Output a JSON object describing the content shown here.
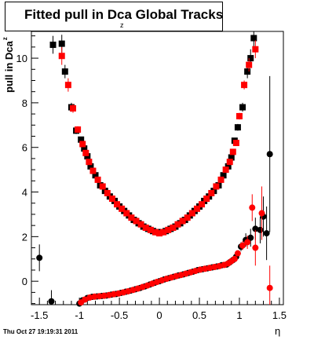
{
  "title": {
    "main": "Fitted pull in Dca Global Tracks",
    "sub": "z"
  },
  "timestamp": "Thu Oct 27 19:19:31 2011",
  "chart_data": {
    "type": "scatter",
    "xlabel": "η",
    "ylabel": "pull in Dca",
    "ylabel_sub": "z",
    "xlim": [
      -1.6,
      1.55
    ],
    "ylim": [
      -1.05,
      11.2
    ],
    "x_ticks": [
      -1.5,
      -1,
      -0.5,
      0,
      0.5,
      1,
      1.5
    ],
    "x_tick_labels": [
      "-1.5",
      "-1",
      "-0.5",
      "0",
      "0.5",
      "1",
      "1.5"
    ],
    "y_ticks": [
      0,
      2,
      4,
      6,
      8,
      10
    ],
    "y_tick_labels": [
      "0",
      "2",
      "4",
      "6",
      "8",
      "10"
    ],
    "grid": false,
    "series": [
      {
        "marker": "square",
        "color": "#000000",
        "points": [
          [
            -1.33,
            10.6
          ],
          [
            -1.22,
            10.65
          ],
          [
            -1.18,
            9.4
          ],
          [
            -1.1,
            7.8
          ],
          [
            -1.04,
            6.75
          ],
          [
            -0.98,
            6.35
          ],
          [
            -0.94,
            5.95
          ],
          [
            -0.9,
            5.6
          ],
          [
            -0.86,
            5.15
          ],
          [
            -0.8,
            4.75
          ],
          [
            -0.74,
            4.3
          ],
          [
            -0.68,
            4.05
          ],
          [
            -0.62,
            3.8
          ],
          [
            -0.56,
            3.6
          ],
          [
            -0.5,
            3.35
          ],
          [
            -0.44,
            3.15
          ],
          [
            -0.38,
            2.95
          ],
          [
            -0.32,
            2.75
          ],
          [
            -0.26,
            2.6
          ],
          [
            -0.2,
            2.45
          ],
          [
            -0.14,
            2.35
          ],
          [
            -0.08,
            2.25
          ],
          [
            -0.02,
            2.2
          ],
          [
            0.02,
            2.2
          ],
          [
            0.08,
            2.25
          ],
          [
            0.14,
            2.35
          ],
          [
            0.2,
            2.45
          ],
          [
            0.26,
            2.6
          ],
          [
            0.32,
            2.75
          ],
          [
            0.38,
            2.95
          ],
          [
            0.44,
            3.15
          ],
          [
            0.5,
            3.35
          ],
          [
            0.56,
            3.6
          ],
          [
            0.62,
            3.8
          ],
          [
            0.68,
            4.05
          ],
          [
            0.74,
            4.3
          ],
          [
            0.8,
            4.75
          ],
          [
            0.86,
            5.15
          ],
          [
            0.9,
            5.55
          ],
          [
            0.94,
            6.3
          ],
          [
            0.98,
            6.9
          ],
          [
            1.04,
            7.8
          ],
          [
            1.1,
            9.4
          ],
          [
            1.14,
            10
          ],
          [
            1.18,
            10.9
          ]
        ],
        "y_errors": [
          0.4,
          0.4,
          0.3,
          0.2,
          0.15,
          0.1,
          0.08,
          0.05,
          0.05,
          0.05,
          0.04,
          0.04,
          0.03,
          0.03,
          0.03,
          0.03,
          0.03,
          0.03,
          0.03,
          0.03,
          0.03,
          0.03,
          0.03,
          0.03,
          0.03,
          0.03,
          0.03,
          0.03,
          0.03,
          0.03,
          0.03,
          0.03,
          0.03,
          0.04,
          0.04,
          0.04,
          0.05,
          0.05,
          0.05,
          0.08,
          0.15,
          0.2,
          0.3,
          0.4,
          0.5
        ]
      },
      {
        "marker": "square",
        "color": "#ff0000",
        "points": [
          [
            -1.22,
            10.1
          ],
          [
            -1.14,
            8.8
          ],
          [
            -1.08,
            7.75
          ],
          [
            -1.02,
            6.8
          ],
          [
            -0.96,
            6.15
          ],
          [
            -0.92,
            5.75
          ],
          [
            -0.88,
            5.35
          ],
          [
            -0.83,
            4.95
          ],
          [
            -0.77,
            4.55
          ],
          [
            -0.71,
            4.25
          ],
          [
            -0.65,
            3.95
          ],
          [
            -0.59,
            3.7
          ],
          [
            -0.53,
            3.45
          ],
          [
            -0.47,
            3.25
          ],
          [
            -0.41,
            3.05
          ],
          [
            -0.35,
            2.85
          ],
          [
            -0.29,
            2.7
          ],
          [
            -0.23,
            2.55
          ],
          [
            -0.17,
            2.4
          ],
          [
            -0.11,
            2.3
          ],
          [
            -0.05,
            2.2
          ],
          [
            0.0,
            2.15
          ],
          [
            0.05,
            2.2
          ],
          [
            0.11,
            2.3
          ],
          [
            0.17,
            2.4
          ],
          [
            0.23,
            2.55
          ],
          [
            0.29,
            2.7
          ],
          [
            0.35,
            2.85
          ],
          [
            0.41,
            3.05
          ],
          [
            0.47,
            3.25
          ],
          [
            0.53,
            3.45
          ],
          [
            0.59,
            3.7
          ],
          [
            0.65,
            3.95
          ],
          [
            0.71,
            4.25
          ],
          [
            0.77,
            4.55
          ],
          [
            0.83,
            5.0
          ],
          [
            0.88,
            5.35
          ],
          [
            0.92,
            5.8
          ],
          [
            0.96,
            6.2
          ],
          [
            1.0,
            7.4
          ],
          [
            1.06,
            8.8
          ],
          [
            1.12,
            9.7
          ],
          [
            1.2,
            10.4
          ]
        ],
        "y_errors": [
          0.4,
          0.3,
          0.2,
          0.15,
          0.1,
          0.08,
          0.05,
          0.05,
          0.05,
          0.04,
          0.04,
          0.03,
          0.03,
          0.03,
          0.03,
          0.03,
          0.03,
          0.03,
          0.03,
          0.03,
          0.03,
          0.03,
          0.03,
          0.03,
          0.03,
          0.03,
          0.03,
          0.03,
          0.03,
          0.03,
          0.03,
          0.03,
          0.04,
          0.04,
          0.04,
          0.05,
          0.05,
          0.05,
          0.08,
          0.15,
          0.2,
          0.3,
          0.4
        ]
      },
      {
        "marker": "circle",
        "color": "#000000",
        "points": [
          [
            -1.5,
            1.05
          ],
          [
            -1.35,
            -0.9
          ],
          [
            -1.0,
            -1.0
          ],
          [
            -0.96,
            -0.85
          ],
          [
            -0.9,
            -0.75
          ],
          [
            -0.84,
            -0.7
          ],
          [
            -0.78,
            -0.68
          ],
          [
            -0.72,
            -0.66
          ],
          [
            -0.66,
            -0.64
          ],
          [
            -0.6,
            -0.6
          ],
          [
            -0.54,
            -0.57
          ],
          [
            -0.48,
            -0.52
          ],
          [
            -0.42,
            -0.47
          ],
          [
            -0.36,
            -0.42
          ],
          [
            -0.3,
            -0.36
          ],
          [
            -0.24,
            -0.3
          ],
          [
            -0.18,
            -0.23
          ],
          [
            -0.12,
            -0.15
          ],
          [
            -0.06,
            -0.07
          ],
          [
            0.0,
            0.0
          ],
          [
            0.06,
            0.08
          ],
          [
            0.12,
            0.14
          ],
          [
            0.18,
            0.2
          ],
          [
            0.24,
            0.26
          ],
          [
            0.3,
            0.31
          ],
          [
            0.36,
            0.37
          ],
          [
            0.42,
            0.43
          ],
          [
            0.48,
            0.5
          ],
          [
            0.54,
            0.54
          ],
          [
            0.6,
            0.58
          ],
          [
            0.66,
            0.62
          ],
          [
            0.72,
            0.66
          ],
          [
            0.78,
            0.72
          ],
          [
            0.84,
            0.75
          ],
          [
            0.88,
            0.85
          ],
          [
            0.92,
            0.95
          ],
          [
            0.96,
            1.1
          ],
          [
            1.02,
            1.55
          ],
          [
            1.08,
            1.85
          ],
          [
            1.14,
            1.95
          ],
          [
            1.2,
            2.35
          ],
          [
            1.26,
            2.3
          ],
          [
            1.3,
            2.9
          ],
          [
            1.34,
            2.15
          ],
          [
            1.38,
            5.7
          ]
        ],
        "y_errors": [
          0.6,
          0.5,
          0.15,
          0.1,
          0.08,
          0.06,
          0.05,
          0.04,
          0.04,
          0.03,
          0.03,
          0.03,
          0.03,
          0.03,
          0.03,
          0.03,
          0.03,
          0.03,
          0.03,
          0.03,
          0.03,
          0.03,
          0.03,
          0.03,
          0.03,
          0.03,
          0.03,
          0.03,
          0.03,
          0.03,
          0.03,
          0.03,
          0.04,
          0.04,
          0.06,
          0.08,
          0.1,
          0.2,
          0.3,
          0.4,
          0.5,
          0.6,
          0.9,
          1.2,
          3.5
        ]
      },
      {
        "marker": "circle",
        "color": "#ff0000",
        "points": [
          [
            -0.98,
            -0.95
          ],
          [
            -0.93,
            -0.82
          ],
          [
            -0.87,
            -0.73
          ],
          [
            -0.81,
            -0.69
          ],
          [
            -0.75,
            -0.67
          ],
          [
            -0.69,
            -0.65
          ],
          [
            -0.63,
            -0.62
          ],
          [
            -0.57,
            -0.58
          ],
          [
            -0.51,
            -0.55
          ],
          [
            -0.45,
            -0.5
          ],
          [
            -0.39,
            -0.45
          ],
          [
            -0.33,
            -0.39
          ],
          [
            -0.27,
            -0.33
          ],
          [
            -0.21,
            -0.26
          ],
          [
            -0.15,
            -0.19
          ],
          [
            -0.09,
            -0.11
          ],
          [
            -0.03,
            -0.03
          ],
          [
            0.03,
            0.04
          ],
          [
            0.09,
            0.11
          ],
          [
            0.15,
            0.17
          ],
          [
            0.21,
            0.23
          ],
          [
            0.27,
            0.28
          ],
          [
            0.33,
            0.34
          ],
          [
            0.39,
            0.4
          ],
          [
            0.45,
            0.46
          ],
          [
            0.51,
            0.52
          ],
          [
            0.57,
            0.56
          ],
          [
            0.63,
            0.6
          ],
          [
            0.69,
            0.64
          ],
          [
            0.75,
            0.68
          ],
          [
            0.81,
            0.73
          ],
          [
            0.86,
            0.8
          ],
          [
            0.9,
            0.9
          ],
          [
            0.94,
            1.0
          ],
          [
            0.98,
            1.25
          ],
          [
            1.04,
            1.6
          ],
          [
            1.1,
            1.75
          ],
          [
            1.16,
            3.3
          ],
          [
            1.2,
            1.5
          ],
          [
            1.28,
            3.05
          ],
          [
            1.38,
            -0.3
          ]
        ],
        "y_errors": [
          0.12,
          0.1,
          0.07,
          0.06,
          0.05,
          0.04,
          0.04,
          0.03,
          0.03,
          0.03,
          0.03,
          0.03,
          0.03,
          0.03,
          0.03,
          0.03,
          0.03,
          0.03,
          0.03,
          0.03,
          0.03,
          0.03,
          0.03,
          0.03,
          0.03,
          0.03,
          0.03,
          0.03,
          0.03,
          0.04,
          0.04,
          0.05,
          0.06,
          0.08,
          0.1,
          0.2,
          0.3,
          0.6,
          0.8,
          1.2,
          1.0
        ]
      }
    ]
  }
}
